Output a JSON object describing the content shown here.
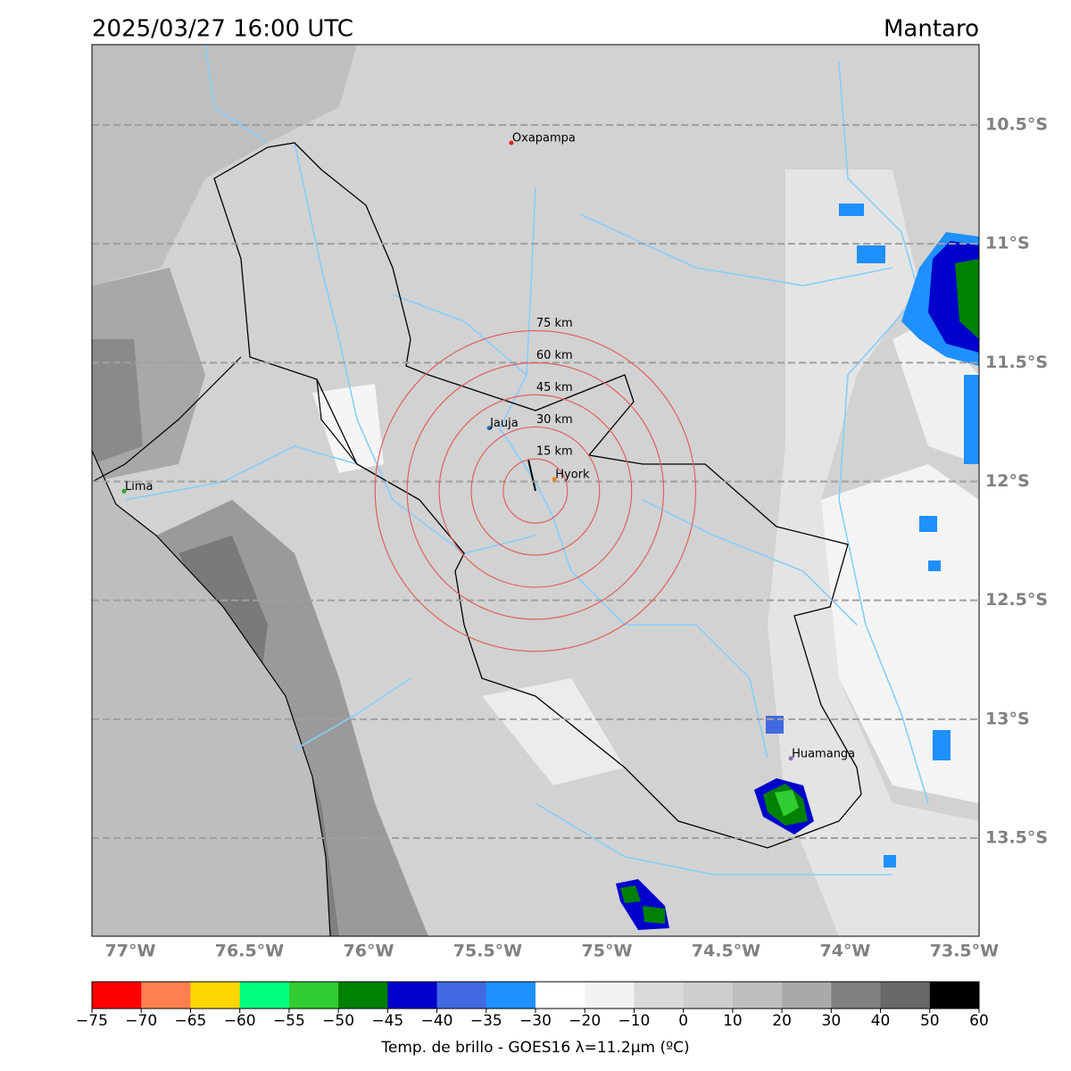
{
  "map": {
    "title": "2025/03/27 16:00 UTC",
    "region": "Mantaro",
    "xlim": [
      -77.161,
      -73.438
    ],
    "ylim": [
      -13.913,
      -10.162
    ],
    "xticks": [
      {
        "value": -77,
        "label": "77°W"
      },
      {
        "value": -76.5,
        "label": "76.5°W"
      },
      {
        "value": -76,
        "label": "76°W"
      },
      {
        "value": -75.5,
        "label": "75.5°W"
      },
      {
        "value": -75,
        "label": "75°W"
      },
      {
        "value": -74.5,
        "label": "74.5°W"
      },
      {
        "value": -74,
        "label": "74°W"
      },
      {
        "value": -73.5,
        "label": "73.5°W"
      }
    ],
    "yticks": [
      {
        "value": -10.5,
        "label": "10.5°S"
      },
      {
        "value": -11,
        "label": "11°S"
      },
      {
        "value": -11.5,
        "label": "11.5°S"
      },
      {
        "value": -12,
        "label": "12°S"
      },
      {
        "value": -12.5,
        "label": "12.5°S"
      },
      {
        "value": -13,
        "label": "13°S"
      },
      {
        "value": -13.5,
        "label": "13.5°S"
      }
    ],
    "grid": true,
    "places": [
      {
        "name": "Oxapampa",
        "lon": -75.401,
        "lat": -10.575,
        "color": "#d62728"
      },
      {
        "name": "Jauja",
        "lon": -75.494,
        "lat": -11.775,
        "color": "#1f77b4"
      },
      {
        "name": "Lima",
        "lon": -77.026,
        "lat": -12.041,
        "color": "#2ca02c"
      },
      {
        "name": "Hyork",
        "lon": -75.22,
        "lat": -11.99,
        "color": "#ff7f0e"
      },
      {
        "name": "Huamanga",
        "lon": -74.228,
        "lat": -13.165,
        "color": "#9467bd"
      }
    ],
    "rings": {
      "center_lon": -75.3,
      "center_lat": -12.04,
      "color": "#e06060",
      "radii": [
        {
          "value": 15,
          "label": "15 km"
        },
        {
          "value": 30,
          "label": "30 km"
        },
        {
          "value": 45,
          "label": "45 km"
        },
        {
          "value": 60,
          "label": "60 km"
        },
        {
          "value": 75,
          "label": "75 km"
        }
      ]
    }
  },
  "colorbar": {
    "colors": [
      "#ff0000",
      "#ff7f50",
      "#ffd700",
      "#00ff7f",
      "#32cd32",
      "#008000",
      "#0000cd",
      "#4169e1",
      "#1e90ff",
      "#ffffff",
      "#f2f2f2",
      "#dadada",
      "#cecece",
      "#bebebe",
      "#a9a9a9",
      "#808080",
      "#696969",
      "#000000"
    ],
    "ticks": [
      {
        "value": -75,
        "label": "−75"
      },
      {
        "value": -70,
        "label": "−70"
      },
      {
        "value": -65,
        "label": "−65"
      },
      {
        "value": -60,
        "label": "−60"
      },
      {
        "value": -55,
        "label": "−55"
      },
      {
        "value": -50,
        "label": "−50"
      },
      {
        "value": -45,
        "label": "−45"
      },
      {
        "value": -40,
        "label": "−40"
      },
      {
        "value": -35,
        "label": "−35"
      },
      {
        "value": -30,
        "label": "−30"
      },
      {
        "value": -20,
        "label": "−20"
      },
      {
        "value": -10,
        "label": "−10"
      },
      0,
      10,
      20,
      30,
      40,
      50,
      60
    ],
    "label": "Temp. de brillo - GOES16 λ=11.2μm (ºC)"
  }
}
